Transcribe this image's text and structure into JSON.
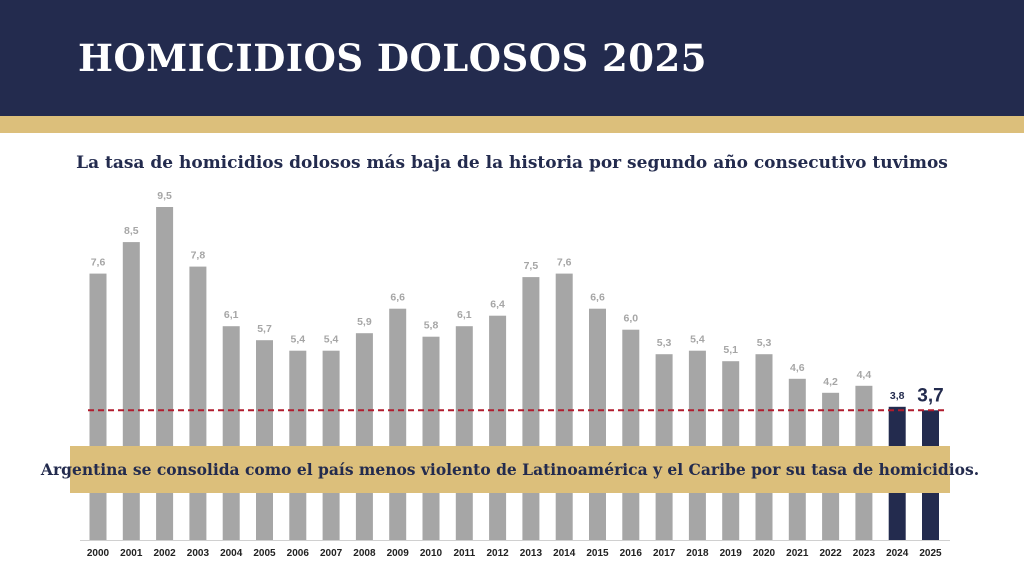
{
  "header": {
    "title": "HOMICIDIOS DOLOSOS 2025"
  },
  "subtitle": "La tasa de homicidios dolosos más baja de la historia por segundo año consecutivo tuvimos",
  "banner": {
    "text": "Argentina se consolida como el país menos violento de Latinoamérica y el Caribe por su tasa de homicidios."
  },
  "colors": {
    "header_bg": "#232b4e",
    "gold": "#dcbf7b",
    "bar_default": "#a6a6a6",
    "bar_highlight": "#232b4e",
    "label_default": "#a6a6a6",
    "label_highlight": "#232b4e",
    "reference_line": "#b01c2e"
  },
  "chart_data": {
    "type": "bar",
    "categories": [
      "2000",
      "2001",
      "2002",
      "2003",
      "2004",
      "2005",
      "2006",
      "2007",
      "2008",
      "2009",
      "2010",
      "2011",
      "2012",
      "2013",
      "2014",
      "2015",
      "2016",
      "2017",
      "2018",
      "2019",
      "2020",
      "2021",
      "2022",
      "2023",
      "2024",
      "2025"
    ],
    "values": [
      7.6,
      8.5,
      9.5,
      7.8,
      6.1,
      5.7,
      5.4,
      5.4,
      5.9,
      6.6,
      5.8,
      6.1,
      6.4,
      7.5,
      7.6,
      6.6,
      6.0,
      5.3,
      5.4,
      5.1,
      5.3,
      4.6,
      4.2,
      4.4,
      3.8,
      3.7
    ],
    "value_labels": [
      "7,6",
      "8,5",
      "9,5",
      "7,8",
      "6,1",
      "5,7",
      "5,4",
      "5,4",
      "5,9",
      "6,6",
      "5,8",
      "6,1",
      "6,4",
      "7,5",
      "7,6",
      "6,6",
      "6,0",
      "5,3",
      "5,4",
      "5,1",
      "5,3",
      "4,6",
      "4,2",
      "4,4",
      "3,8",
      "3,7"
    ],
    "highlighted": [
      "2024",
      "2025"
    ],
    "reference_line": {
      "value": 3.7,
      "style": "dashed"
    },
    "ylim": [
      0,
      9.5
    ],
    "grid": false,
    "legend": "none"
  }
}
